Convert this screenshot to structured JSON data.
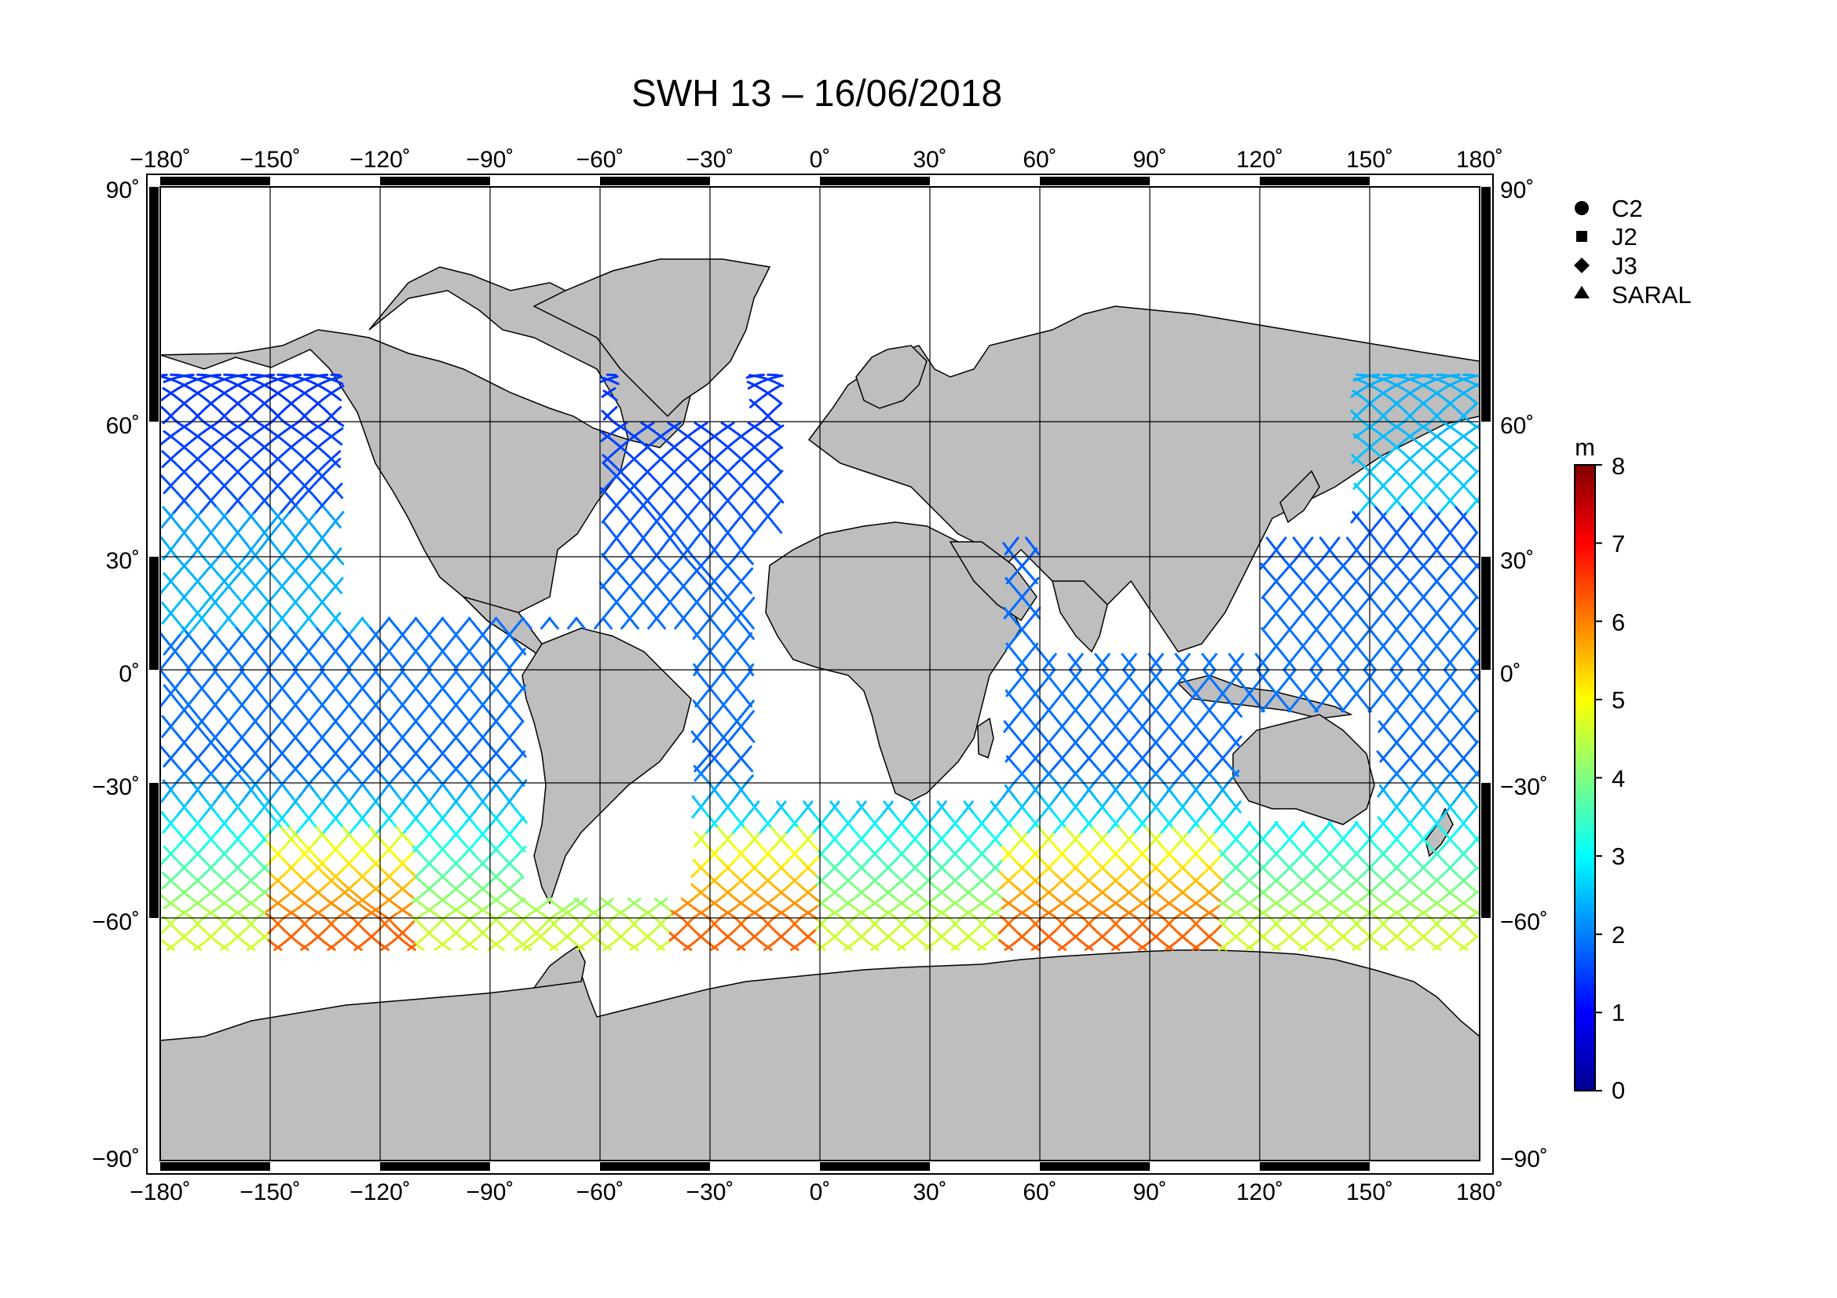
{
  "title": "SWH 13 – 16/06/2018",
  "longitude_ticks": [
    "−180˚",
    "−150˚",
    "−120˚",
    "−90˚",
    "−60˚",
    "−30˚",
    "0˚",
    "30˚",
    "60˚",
    "90˚",
    "120˚",
    "150˚",
    "180˚"
  ],
  "latitude_ticks_left": [
    "90˚",
    "60˚",
    "30˚",
    "0˚",
    "−30˚",
    "−60˚",
    "−90˚"
  ],
  "latitude_ticks_right": [
    "90˚",
    "60˚",
    "30˚",
    "0˚",
    "−30˚",
    "−60˚",
    "−90˚"
  ],
  "legend": [
    {
      "label": "C2",
      "marker": "circle"
    },
    {
      "label": "J2",
      "marker": "square"
    },
    {
      "label": "J3",
      "marker": "diamond"
    },
    {
      "label": "SARAL",
      "marker": "triangle"
    }
  ],
  "colorbar": {
    "unit": "m",
    "ticks": [
      "8",
      "7",
      "6",
      "5",
      "4",
      "3",
      "2",
      "1",
      "0"
    ],
    "min": 0,
    "max": 8
  },
  "colors": {
    "land": "#bebebe",
    "ocean": "#ffffff",
    "grid": "#000000"
  },
  "chart_data": {
    "type": "scatter",
    "title": "SWH 13 – 16/06/2018",
    "projection": "equirectangular",
    "x_range": [
      -180,
      180
    ],
    "y_range": [
      -90,
      90
    ],
    "grid": true,
    "colorbar_unit": "m",
    "color_range": [
      0,
      8
    ],
    "series": [
      {
        "name": "C2"
      },
      {
        "name": "J2"
      },
      {
        "name": "J3"
      },
      {
        "name": "SARAL"
      }
    ]
  }
}
